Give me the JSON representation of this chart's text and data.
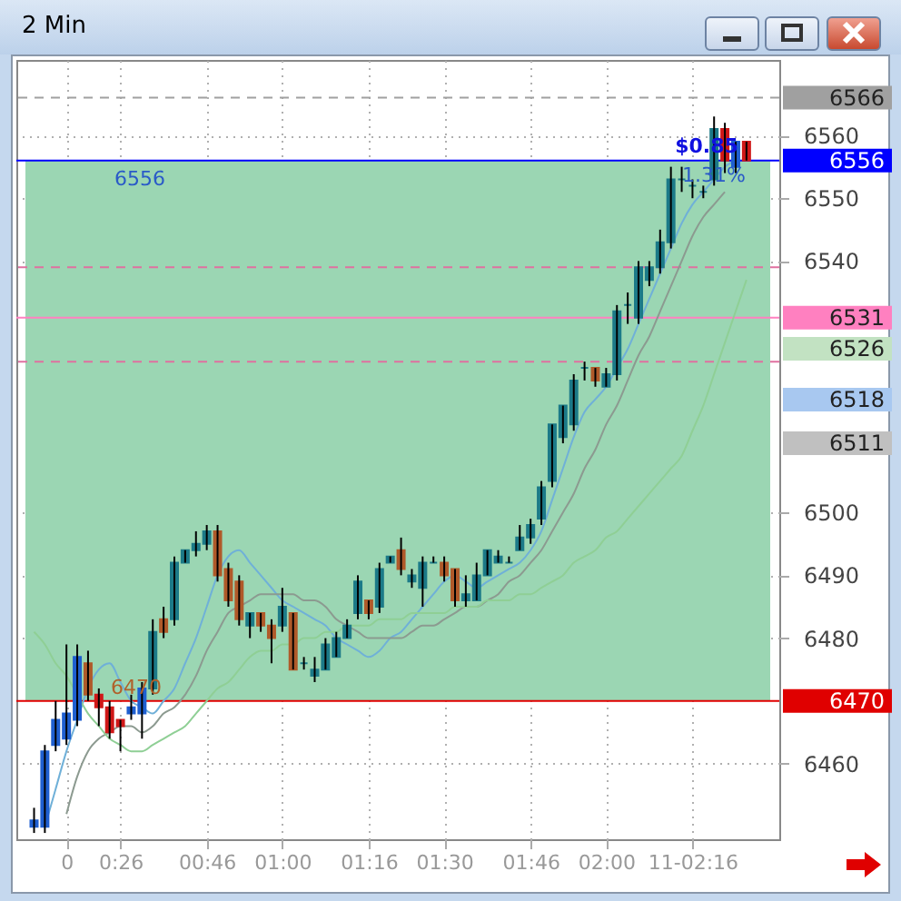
{
  "chart_data": {
    "type": "candlestick",
    "title": "2 Min",
    "categories": [
      null,
      null,
      null,
      "0",
      null,
      null,
      null,
      null,
      "0:26",
      null,
      null,
      null,
      null,
      null,
      null,
      null,
      "00:46",
      null,
      null,
      null,
      null,
      null,
      null,
      "01:00",
      null,
      null,
      null,
      null,
      null,
      null,
      null,
      "01:16",
      null,
      null,
      null,
      null,
      null,
      null,
      "01:30",
      null,
      null,
      null,
      null,
      null,
      null,
      null,
      "01:46",
      null,
      null,
      null,
      null,
      null,
      null,
      "02:00",
      null,
      null,
      null,
      null,
      null,
      null,
      null,
      "11-02:16",
      null,
      null,
      null,
      null,
      null
    ],
    "ohlc": [
      [
        6450,
        6453,
        6449,
        6451
      ],
      [
        6450,
        6463,
        6449,
        6462
      ],
      [
        6463,
        6470,
        6462,
        6467
      ],
      [
        6464,
        6479,
        6463,
        6468
      ],
      [
        6467,
        6479,
        6466,
        6477
      ],
      [
        6476,
        6478,
        6470,
        6471
      ],
      [
        6471,
        6472,
        6466,
        6469
      ],
      [
        6469,
        6470,
        6464,
        6465
      ],
      [
        6467,
        6467,
        6462,
        6466
      ],
      [
        6468,
        6471,
        6467,
        6469
      ],
      [
        6468,
        6473,
        6464,
        6472
      ],
      [
        6472,
        6483,
        6471,
        6481
      ],
      [
        6483,
        6485,
        6480,
        6481
      ],
      [
        6483,
        6493,
        6482,
        6492
      ],
      [
        6492,
        6494,
        6492,
        6494
      ],
      [
        6494,
        6497,
        6493,
        6495
      ],
      [
        6495,
        6498,
        6494,
        6497
      ],
      [
        6497,
        6498,
        6489,
        6490
      ],
      [
        6491,
        6492,
        6485,
        6486
      ],
      [
        6489,
        6490,
        6482,
        6483
      ],
      [
        6482,
        6484,
        6480,
        6484
      ],
      [
        6484,
        6484,
        6481,
        6482
      ],
      [
        6482,
        6483,
        6476,
        6480
      ],
      [
        6482,
        6488,
        6481,
        6485
      ],
      [
        6484,
        6484,
        6475,
        6475
      ],
      [
        6476,
        6477,
        6475,
        6476
      ],
      [
        6474,
        6477,
        6473,
        6475
      ],
      [
        6475,
        6480,
        6475,
        6479
      ],
      [
        6477,
        6481,
        6477,
        6480
      ],
      [
        6480,
        6483,
        6480,
        6482
      ],
      [
        6484,
        6490,
        6483,
        6489
      ],
      [
        6486,
        6486,
        6483,
        6484
      ],
      [
        6485,
        6492,
        6484,
        6491
      ],
      [
        6492,
        6493,
        6492,
        6493
      ],
      [
        6494,
        6496,
        6490,
        6491
      ],
      [
        6489,
        6491,
        6488,
        6490
      ],
      [
        6488,
        6493,
        6485,
        6492
      ],
      [
        6492,
        6493,
        6492,
        6492
      ],
      [
        6492,
        6493,
        6489,
        6490
      ],
      [
        6491,
        6491,
        6485,
        6486
      ],
      [
        6486,
        6490,
        6485,
        6487
      ],
      [
        6486,
        6492,
        6486,
        6490
      ],
      [
        6490,
        6494,
        6490,
        6494
      ],
      [
        6492,
        6494,
        6492,
        6493
      ],
      [
        6492,
        6493,
        6492,
        6492
      ],
      [
        6494,
        6498,
        6494,
        6496
      ],
      [
        6496,
        6499,
        6495,
        6498
      ],
      [
        6499,
        6505,
        6498,
        6504
      ],
      [
        6505,
        6514,
        6504,
        6514
      ],
      [
        6512,
        6517,
        6511,
        6517
      ],
      [
        6514,
        6522,
        6513,
        6521
      ],
      [
        6523,
        6524,
        6521,
        6523
      ],
      [
        6523,
        6523,
        6520,
        6521
      ],
      [
        6520,
        6523,
        6520,
        6522
      ],
      [
        6522,
        6533,
        6521,
        6532
      ],
      [
        6533,
        6535,
        6530,
        6533
      ],
      [
        6531,
        6540,
        6530,
        6539
      ],
      [
        6537,
        6540,
        6536,
        6539
      ],
      [
        6539,
        6545,
        6538,
        6543
      ],
      [
        6543,
        6555,
        6542,
        6553
      ],
      [
        6553,
        6555,
        6551,
        6553
      ],
      [
        6552,
        6553,
        6550,
        6552
      ],
      [
        6551,
        6552,
        6550,
        6551
      ],
      [
        6553,
        6563,
        6552,
        6561
      ],
      [
        6561,
        6562,
        6554,
        6556
      ],
      [
        6555,
        6559,
        6554,
        6559
      ],
      [
        6559,
        6559,
        6556,
        6556
      ]
    ],
    "colors": [
      "#1f5fd0",
      "#1f5fd0",
      "#1f5fd0",
      "#1f5fd0",
      "#1f5fd0",
      "#b05a2a",
      "#d01818",
      "#d01818",
      "#d01818",
      "#1f5fd0",
      "#1f5fd0",
      "#1c7a88",
      "#b05a2a",
      "#1c7a88",
      "#1c7a88",
      "#1c7a88",
      "#1c7a88",
      "#b05a2a",
      "#b05a2a",
      "#b05a2a",
      "#1c7a88",
      "#b05a2a",
      "#b05a2a",
      "#1c7a88",
      "#b05a2a",
      "#1c7a88",
      "#1c7a88",
      "#1c7a88",
      "#1c7a88",
      "#1c7a88",
      "#1c7a88",
      "#b05a2a",
      "#1c7a88",
      "#1c7a88",
      "#b05a2a",
      "#1c7a88",
      "#1c7a88",
      "#1c7a88",
      "#b05a2a",
      "#b05a2a",
      "#1c7a88",
      "#1c7a88",
      "#1c7a88",
      "#1c7a88",
      "#1c7a88",
      "#1c7a88",
      "#1c7a88",
      "#1c7a88",
      "#1c7a88",
      "#1c7a88",
      "#1c7a88",
      "#1c7a88",
      "#b05a2a",
      "#1c7a88",
      "#1c7a88",
      "#1c7a88",
      "#1c7a88",
      "#1c7a88",
      "#1c7a88",
      "#1c7a88",
      "#1c7a88",
      "#1c7a88",
      "#1c7a88",
      "#1c7a88",
      "#d01818",
      "#1f5fd0",
      "#d01818"
    ],
    "series": [
      {
        "type": "line",
        "color": "#6fb0d8",
        "values": [
          null,
          6450,
          6456,
          6462,
          6467,
          6472,
          6475,
          6476,
          6473,
          6470,
          6469,
          6468,
          6470,
          6472,
          6476,
          6480,
          6485,
          6490,
          6493,
          6494,
          6492,
          6490,
          6488,
          6486,
          6485,
          6484,
          6483,
          6482,
          6480,
          6479,
          6478,
          6477,
          6478,
          6480,
          6481,
          6483,
          6485,
          6487,
          6489,
          6490,
          6489,
          6488,
          6489,
          6490,
          6491,
          6492,
          6494,
          6497,
          6502,
          6507,
          6512,
          6516,
          6518,
          6520,
          6523,
          6526,
          6530,
          6534,
          6538,
          6542,
          6546,
          6549,
          6551,
          6553,
          6555,
          6556,
          null
        ]
      },
      {
        "type": "line",
        "color": "#8c9a90",
        "values": [
          null,
          null,
          null,
          6452,
          6458,
          6462,
          6464,
          6465,
          6466,
          6466,
          6465,
          6466,
          6468,
          6469,
          6471,
          6474,
          6478,
          6481,
          6484,
          6485,
          6486,
          6487,
          6487,
          6487,
          6487,
          6486,
          6486,
          6485,
          6483,
          6482,
          6481,
          6480,
          6480,
          6480,
          6480,
          6481,
          6482,
          6482,
          6483,
          6484,
          6485,
          6485,
          6486,
          6487,
          6489,
          6490,
          6492,
          6494,
          6497,
          6500,
          6503,
          6507,
          6510,
          6514,
          6517,
          6521,
          6525,
          6528,
          6532,
          6536,
          6540,
          6544,
          6547,
          6549,
          6551,
          null,
          null
        ]
      },
      {
        "type": "line",
        "color": "#8fcf95",
        "values": [
          6481,
          6479,
          6476,
          6474,
          6471,
          6468,
          6466,
          6464,
          6463,
          6462,
          6462,
          6463,
          6464,
          6465,
          6466,
          6468,
          6470,
          6472,
          6473,
          6475,
          6477,
          6478,
          6478,
          6479,
          6479,
          6480,
          6480,
          6481,
          6481,
          6482,
          6482,
          6482,
          6483,
          6483,
          6483,
          6484,
          6484,
          6484,
          6484,
          6485,
          6485,
          6485,
          6486,
          6486,
          6486,
          6487,
          6487,
          6488,
          6489,
          6490,
          6492,
          6493,
          6494,
          6496,
          6497,
          6499,
          6501,
          6503,
          6505,
          6507,
          6509,
          6513,
          6517,
          6522,
          6527,
          6532,
          6537
        ]
      }
    ],
    "ylim": [
      6448,
      6572
    ],
    "yticks": [
      6460,
      6480,
      6490,
      6500,
      6540,
      6550,
      6560
    ],
    "grid": true,
    "bands": [
      {
        "axis": "y",
        "from": 6470,
        "to": 6556,
        "color": "#9bd6b3"
      }
    ],
    "ref_lines": [
      {
        "axis": "y",
        "value": 6566,
        "label": "6566",
        "color": "#a0a0a0",
        "line_style": "dashed"
      },
      {
        "axis": "y",
        "value": 6556,
        "label": "6556",
        "color": "#0000ff",
        "line_style": "solid"
      },
      {
        "axis": "y",
        "value": 6539,
        "label": null,
        "color": "#e070a0",
        "line_style": "dashed"
      },
      {
        "axis": "y",
        "value": 6531,
        "label": "6531",
        "color": "#ff80c0",
        "line_style": "solid"
      },
      {
        "axis": "y",
        "value": 6524,
        "label": null,
        "color": "#e070a0",
        "line_style": "dashed"
      },
      {
        "axis": "y",
        "value": 6470,
        "label": "6470",
        "color": "#e00000",
        "line_style": "solid"
      }
    ],
    "annotations": [
      "6556",
      "6470",
      "$0.85",
      "1.31%",
      "6526",
      "6518",
      "6511"
    ]
  }
}
